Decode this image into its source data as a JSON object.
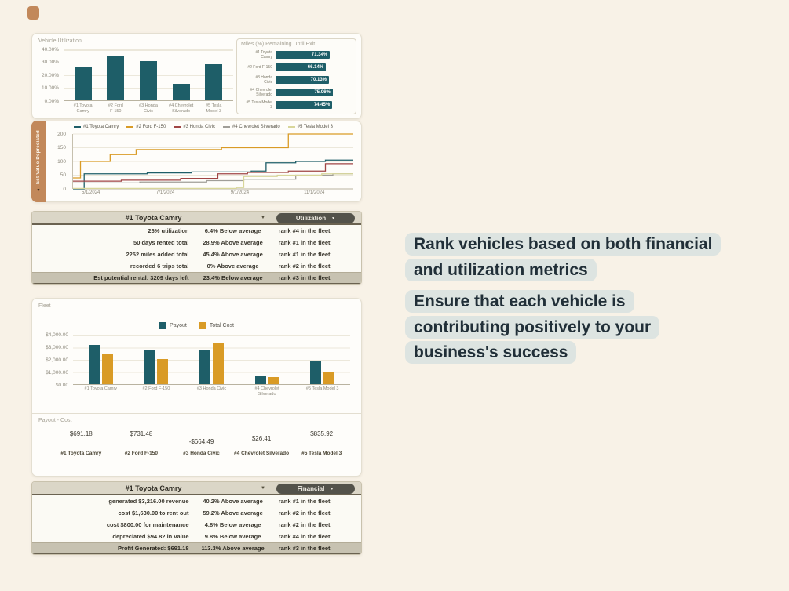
{
  "colors": {
    "teal": "#1e5e68",
    "orange": "#d99b26",
    "red": "#a04545",
    "gray": "#a09e98",
    "pale": "#d8d69a",
    "tan": "#c2885a"
  },
  "top": {
    "utilization": {
      "type": "bar",
      "title": "Vehicle Utilization",
      "yticks": [
        "40.00%",
        "30.00%",
        "20.00%",
        "10.00%",
        "0.00%"
      ],
      "ymax": 40,
      "categories": [
        "#1 Toyota\nCamry",
        "#2 Ford\nF-150",
        "#3 Honda\nCivic",
        "#4 Chevrolet\nSilverado",
        "#5 Tesla\nModel 3"
      ],
      "values": [
        26,
        35,
        31,
        13,
        29
      ]
    },
    "miles": {
      "type": "bar-horizontal",
      "title": "Miles (%) Remaining Until Exit",
      "rows": [
        {
          "label": "#1 Toyota\nCamry",
          "value": 71.34,
          "text": "71.34%"
        },
        {
          "label": "#2 Ford F-150",
          "value": 66.14,
          "text": "66.14%"
        },
        {
          "label": "#3 Honda\nCivic",
          "value": 70.13,
          "text": "70.13%"
        },
        {
          "label": "#4 Chevrolet\nSilverado",
          "value": 75.06,
          "text": "75.06%"
        },
        {
          "label": "#5 Tesla Model\n3",
          "value": 74.45,
          "text": "74.45%"
        }
      ]
    },
    "depreciation": {
      "type": "line",
      "side_label": "Est Value Depreciated",
      "yticks": [
        "200",
        "150",
        "100",
        "50",
        "0"
      ],
      "ymax": 200,
      "xmax": 7.55,
      "xticks": [
        {
          "label": "5/1/2024",
          "m": 0.5
        },
        {
          "label": "7/1/2024",
          "m": 2.5
        },
        {
          "label": "9/1/2024",
          "m": 4.5
        },
        {
          "label": "11/1/2024",
          "m": 6.5
        }
      ],
      "series": [
        {
          "name": "#1 Toyota Camry",
          "color": "teal",
          "points": [
            [
              0,
              0
            ],
            [
              0.3,
              55
            ],
            [
              2.0,
              58
            ],
            [
              3.2,
              62
            ],
            [
              4.8,
              65
            ],
            [
              5.2,
              95
            ],
            [
              6.0,
              100
            ],
            [
              6.8,
              105
            ]
          ]
        },
        {
          "name": "#2 Ford F-150",
          "color": "orange",
          "points": [
            [
              0,
              40
            ],
            [
              0.2,
              100
            ],
            [
              1.0,
              125
            ],
            [
              1.7,
              143
            ],
            [
              4.0,
              150
            ],
            [
              5.8,
              200
            ]
          ]
        },
        {
          "name": "#3 Honda Civic",
          "color": "red",
          "points": [
            [
              0,
              28
            ],
            [
              1.3,
              32
            ],
            [
              2.9,
              38
            ],
            [
              3.9,
              55
            ],
            [
              4.7,
              60
            ],
            [
              5.8,
              65
            ],
            [
              6.8,
              92
            ]
          ]
        },
        {
          "name": "#4 Chevrolet Silverado",
          "color": "gray",
          "points": [
            [
              0,
              22
            ],
            [
              1.8,
              25
            ],
            [
              3.6,
              30
            ],
            [
              4.6,
              35
            ],
            [
              6.0,
              50
            ],
            [
              7.0,
              55
            ]
          ]
        },
        {
          "name": "#5 Tesla Model 3",
          "color": "pale",
          "points": [
            [
              0,
              2
            ],
            [
              4.4,
              5
            ],
            [
              4.6,
              45
            ],
            [
              5.5,
              50
            ],
            [
              6.7,
              55
            ]
          ]
        }
      ]
    }
  },
  "tables": {
    "utilization": {
      "vehicle": "#1 Toyota Camry",
      "metric": "Utilization",
      "rows": [
        [
          "26% utilization",
          "6.4% Below average",
          "rank #4 in the fleet"
        ],
        [
          "50 days rented total",
          "28.9% Above average",
          "rank #1 in the fleet"
        ],
        [
          "2252 miles added total",
          "45.4% Above average",
          "rank #1 in the fleet"
        ],
        [
          "recorded 6 trips total",
          "0% Above average",
          "rank #2 in the fleet"
        ]
      ],
      "total_row": [
        "Est potential rental: 3209 days left",
        "23.4% Below average",
        "rank #3 in the fleet"
      ]
    },
    "financial": {
      "vehicle": "#1 Toyota Camry",
      "metric": "Financial",
      "rows": [
        [
          "generated $3,216.00 revenue",
          "40.2% Above average",
          "rank #1 in the fleet"
        ],
        [
          "cost $1,630.00 to rent out",
          "59.2% Above average",
          "rank #2 in the fleet"
        ],
        [
          "cost $800.00 for maintenance",
          "4.8% Below average",
          "rank #2 in the fleet"
        ],
        [
          "depreciated $94.82 in value",
          "9.8% Below average",
          "rank #4 in the fleet"
        ]
      ],
      "total_row": [
        "Profit Generated: $691.18",
        "113.3% Above average",
        "rank #3 in the fleet"
      ]
    }
  },
  "fleet": {
    "type": "grouped-bar",
    "title": "Fleet",
    "legend": [
      {
        "label": "Payout",
        "color": "teal"
      },
      {
        "label": "Total Cost",
        "color": "orange"
      }
    ],
    "yticks": [
      "$4,000.00",
      "$3,000.00",
      "$2,000.00",
      "$1,000.00",
      "$0.00"
    ],
    "ymax": 4000,
    "categories": [
      "#1 Toyota Camry",
      "#2 Ford F-150",
      "#3 Honda Civic",
      "#4 Chevrolet\nSilverado",
      "#5 Tesla Model 3"
    ],
    "series": [
      {
        "name": "Payout",
        "color": "teal",
        "values": [
          3216,
          2800,
          2750,
          620,
          1900
        ]
      },
      {
        "name": "Total Cost",
        "color": "orange",
        "values": [
          2524.82,
          2068.52,
          3414.49,
          593.59,
          1064.08
        ]
      }
    ],
    "payout_cost": {
      "title": "Payout - Cost",
      "values": [
        "$691.18",
        "$731.48",
        "-$664.49",
        "$26.41",
        "$835.92"
      ],
      "names": [
        "#1 Toyota Camry",
        "#2 Ford F-150",
        "#3 Honda Civic",
        "#4 Chevrolet Silverado",
        "#5 Tesla Model 3"
      ]
    }
  },
  "callouts": [
    "Rank vehicles based on both financial\nand utilization metrics",
    "Ensure that each vehicle is\ncontributing positively to your\nbusiness's success"
  ]
}
